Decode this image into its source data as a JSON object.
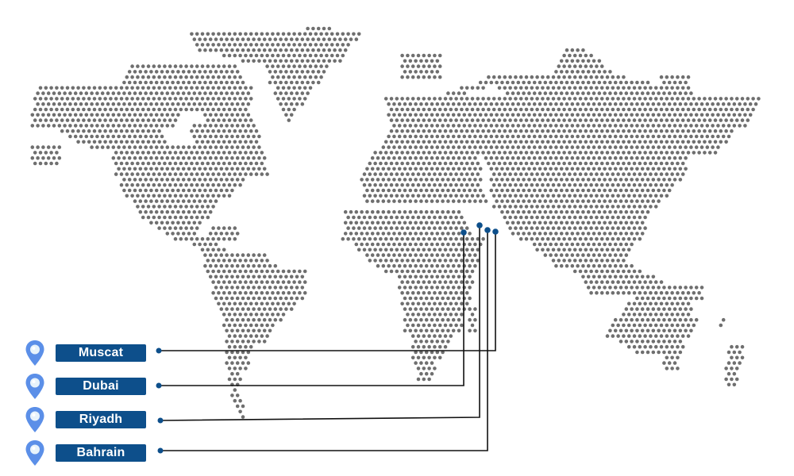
{
  "colors": {
    "dot": "#6f6f6f",
    "label_bg": "#0d4f8b",
    "label_text": "#ffffff",
    "line": "#111111",
    "endpoint": "#0d4f8b",
    "pin_outer": "#5b8fe8",
    "pin_inner": "#e8f3fb"
  },
  "legend": {
    "icon": "location-pin-icon",
    "items": [
      {
        "label": "Muscat"
      },
      {
        "label": "Dubai"
      },
      {
        "label": "Riyadh"
      },
      {
        "label": "Bahrain"
      }
    ]
  }
}
